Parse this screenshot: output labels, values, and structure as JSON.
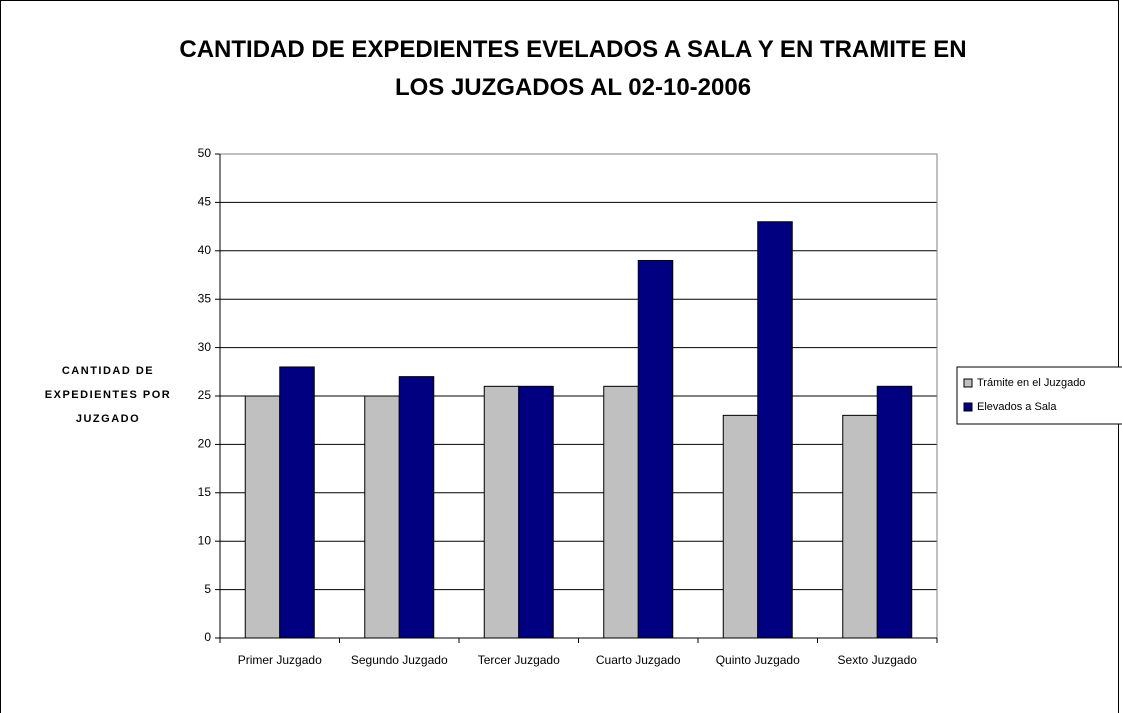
{
  "chart_data": {
    "type": "bar",
    "title": "CANTIDAD DE EXPEDIENTES EVELADOS A SALA Y EN TRAMITE EN LOS JUZGADOS AL 02-10-2006",
    "y_label": "CANTIDAD DE EXPEDIENTES POR JUZGADO",
    "categories": [
      "Primer Juzgado",
      "Segundo Juzgado",
      "Tercer Juzgado",
      "Cuarto Juzgado",
      "Quinto Juzgado",
      "Sexto Juzgado"
    ],
    "series": [
      {
        "name": "Trámite en el Juzgado",
        "color": "#c0c0c0",
        "values": [
          25,
          25,
          26,
          26,
          23,
          23
        ]
      },
      {
        "name": "Elevados a Sala",
        "color": "#000080",
        "values": [
          28,
          27,
          26,
          39,
          43,
          26
        ]
      }
    ],
    "ylim": [
      0,
      50
    ],
    "yticks": [
      0,
      5,
      10,
      15,
      20,
      25,
      30,
      35,
      40,
      45,
      50
    ],
    "grid": true,
    "legend": "right"
  }
}
